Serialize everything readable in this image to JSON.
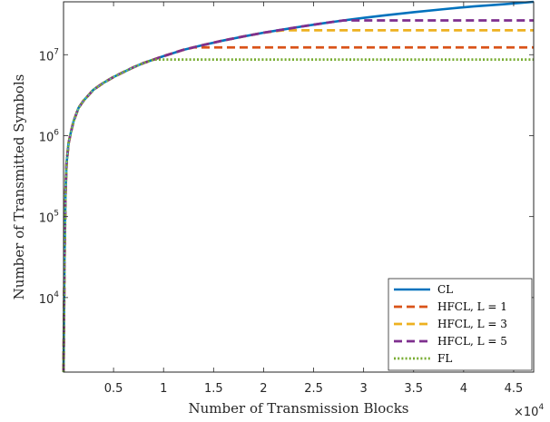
{
  "chart_data": {
    "type": "line",
    "xlabel": "Number of Transmission Blocks",
    "ylabel": "Number of Transmitted Symbols",
    "x_multiplier_label": "×10",
    "x_multiplier_exponent": "4",
    "xlim": [
      0,
      47000
    ],
    "ylim": [
      1200,
      45000000
    ],
    "y_scale": "log",
    "x_ticks": [
      {
        "value": 5000,
        "label": "0.5"
      },
      {
        "value": 10000,
        "label": "1"
      },
      {
        "value": 15000,
        "label": "1.5"
      },
      {
        "value": 20000,
        "label": "2"
      },
      {
        "value": 25000,
        "label": "2.5"
      },
      {
        "value": 30000,
        "label": "3"
      },
      {
        "value": 35000,
        "label": "3.5"
      },
      {
        "value": 40000,
        "label": "4"
      },
      {
        "value": 45000,
        "label": "4.5"
      }
    ],
    "y_ticks": [
      {
        "value": 10000,
        "base": "10",
        "exp": "4"
      },
      {
        "value": 100000,
        "base": "10",
        "exp": "5"
      },
      {
        "value": 1000000,
        "base": "10",
        "exp": "6"
      },
      {
        "value": 10000000,
        "base": "10",
        "exp": "7"
      }
    ],
    "grid": false,
    "legend_position": "bottom-right",
    "series": [
      {
        "name": "CL",
        "color": "#0072BD",
        "dash": "solid",
        "x": [
          0,
          50,
          100,
          200,
          300,
          500,
          700,
          1000,
          1500,
          2000,
          3000,
          4000,
          5000,
          6000,
          7000,
          8000,
          9000,
          10000,
          12000,
          14000,
          16000,
          18000,
          20000,
          22000,
          24000,
          26000,
          28000,
          30000,
          32000,
          35000,
          38000,
          41000,
          44000,
          47000
        ],
        "y": [
          1200,
          6000,
          30000,
          200000,
          450000,
          800000,
          1050000,
          1500000,
          2200000,
          2700000,
          3700000,
          4500000,
          5300000,
          6100000,
          7000000,
          7900000,
          8700000,
          9600000,
          11500000,
          13200000,
          15000000,
          16800000,
          18700000,
          20500000,
          22500000,
          24500000,
          26500000,
          28500000,
          30500000,
          33500000,
          36500000,
          39500000,
          42000000,
          45000000
        ]
      },
      {
        "name": "HFCL, L = 1",
        "color": "#D95319",
        "dash": "dashed",
        "x": [
          0,
          50,
          100,
          200,
          300,
          500,
          700,
          1000,
          1500,
          2000,
          3000,
          4000,
          5000,
          6000,
          7000,
          8000,
          9000,
          10000,
          11000,
          12000,
          13000,
          47000
        ],
        "y": [
          1200,
          6000,
          30000,
          200000,
          450000,
          800000,
          1050000,
          1500000,
          2200000,
          2700000,
          3700000,
          4500000,
          5300000,
          6100000,
          7000000,
          7900000,
          8700000,
          9600000,
          10500000,
          11500000,
          12300000,
          12300000
        ]
      },
      {
        "name": "HFCL, L = 3",
        "color": "#EDB120",
        "dash": "dashed",
        "x": [
          0,
          50,
          100,
          200,
          300,
          500,
          700,
          1000,
          1500,
          2000,
          3000,
          4000,
          5000,
          6000,
          7000,
          8000,
          9000,
          10000,
          12000,
          14000,
          16000,
          18000,
          20000,
          22000,
          47000
        ],
        "y": [
          1200,
          6000,
          30000,
          200000,
          450000,
          800000,
          1050000,
          1500000,
          2200000,
          2700000,
          3700000,
          4500000,
          5300000,
          6100000,
          7000000,
          7900000,
          8700000,
          9600000,
          11500000,
          13200000,
          15000000,
          16800000,
          18700000,
          20000000,
          20000000
        ]
      },
      {
        "name": "HFCL, L = 5",
        "color": "#7E2F8E",
        "dash": "dashed",
        "x": [
          0,
          50,
          100,
          200,
          300,
          500,
          700,
          1000,
          1500,
          2000,
          3000,
          4000,
          5000,
          6000,
          7000,
          8000,
          9000,
          10000,
          12000,
          14000,
          16000,
          18000,
          20000,
          22000,
          24000,
          26000,
          28000,
          47000
        ],
        "y": [
          1200,
          6000,
          30000,
          200000,
          450000,
          800000,
          1050000,
          1500000,
          2200000,
          2700000,
          3700000,
          4500000,
          5300000,
          6100000,
          7000000,
          7900000,
          8700000,
          9600000,
          11500000,
          13200000,
          15000000,
          16800000,
          18700000,
          20500000,
          22500000,
          24500000,
          26500000,
          26500000
        ]
      },
      {
        "name": "FL",
        "color": "#77AC30",
        "dash": "dotted",
        "x": [
          0,
          50,
          100,
          200,
          300,
          500,
          700,
          1000,
          1500,
          2000,
          3000,
          4000,
          5000,
          6000,
          7000,
          8000,
          9000,
          47000
        ],
        "y": [
          1200,
          6000,
          30000,
          200000,
          450000,
          800000,
          1050000,
          1500000,
          2200000,
          2700000,
          3700000,
          4500000,
          5300000,
          6100000,
          7000000,
          7900000,
          8700000,
          8700000
        ]
      }
    ]
  }
}
